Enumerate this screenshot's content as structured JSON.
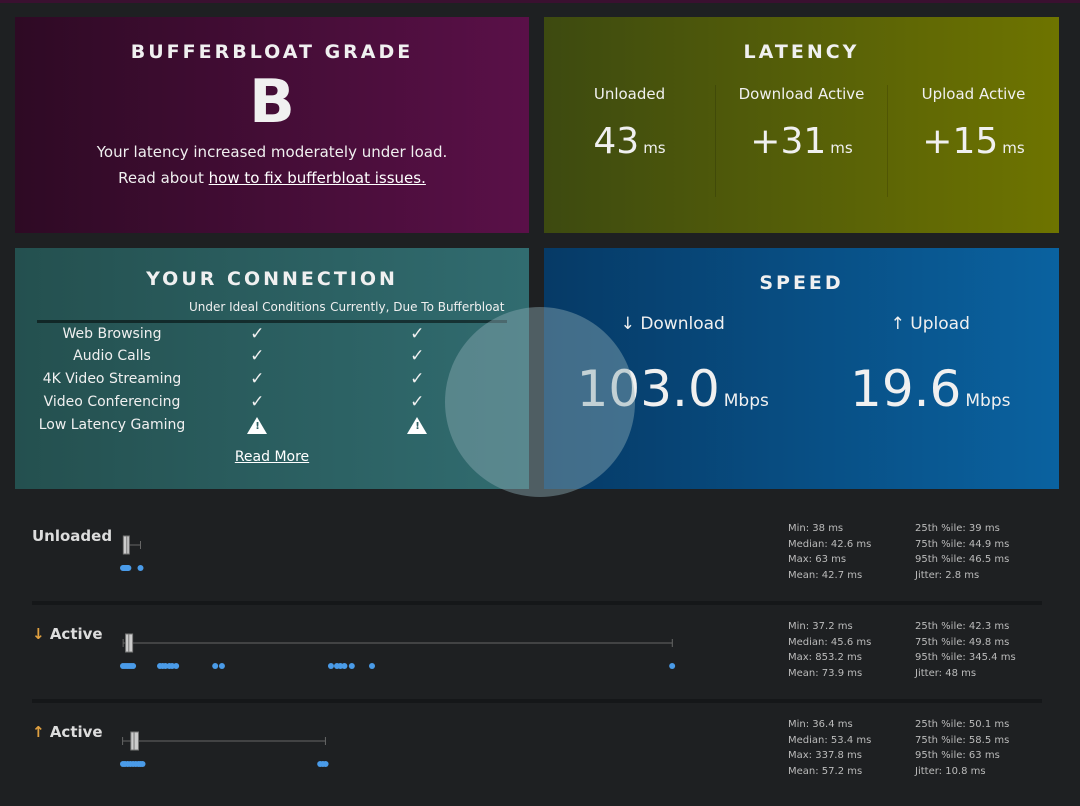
{
  "grade": {
    "title": "BUFFERBLOAT GRADE",
    "letter": "B",
    "message": "Your latency increased moderately under load.",
    "read_prefix": "Read about ",
    "link": "how to fix bufferbloat issues."
  },
  "latency": {
    "title": "LATENCY",
    "items": [
      {
        "label": "Unloaded",
        "value": "43",
        "unit": "ms"
      },
      {
        "label": "Download Active",
        "value": "+31",
        "unit": "ms"
      },
      {
        "label": "Upload Active",
        "value": "+15",
        "unit": "ms"
      }
    ]
  },
  "connection": {
    "title": "YOUR CONNECTION",
    "col1": "Under Ideal Conditions",
    "col2": "Currently, Due To Bufferbloat",
    "rows": [
      {
        "name": "Web Browsing",
        "ideal": "check",
        "current": "check"
      },
      {
        "name": "Audio Calls",
        "ideal": "check",
        "current": "check"
      },
      {
        "name": "4K Video Streaming",
        "ideal": "check",
        "current": "check"
      },
      {
        "name": "Video Conferencing",
        "ideal": "check",
        "current": "check"
      },
      {
        "name": "Low Latency Gaming",
        "ideal": "warning",
        "current": "warning"
      }
    ],
    "read_more": "Read More"
  },
  "speed": {
    "title": "SPEED",
    "download": {
      "label": "↓ Download",
      "value": "103.0",
      "unit": "Mbps"
    },
    "upload": {
      "label": "↑ Upload",
      "value": "19.6",
      "unit": "Mbps"
    }
  },
  "details": [
    {
      "arrow": "",
      "label": "Unloaded",
      "min": "Min: 38 ms",
      "median": "Median: 42.6 ms",
      "max": "Max: 63 ms",
      "mean": "Mean: 42.7 ms",
      "p25": "25th %ile: 39 ms",
      "p75": "75th %ile: 44.9 ms",
      "p95": "95th %ile: 46.5 ms",
      "jitter": "Jitter: 2.8 ms",
      "box": {
        "min": 38,
        "q1": 39,
        "median": 42.6,
        "q3": 44.9,
        "max": 63
      },
      "samples": [
        37,
        38,
        39,
        40,
        41,
        42,
        43,
        44,
        45,
        63
      ]
    },
    {
      "arrow": "↓",
      "label": "Active",
      "min": "Min: 37.2 ms",
      "median": "Median: 45.6 ms",
      "max": "Max: 853.2 ms",
      "mean": "Mean: 73.9 ms",
      "p25": "25th %ile: 42.3 ms",
      "p75": "75th %ile: 49.8 ms",
      "p95": "95th %ile: 345.4 ms",
      "jitter": "Jitter: 48 ms",
      "box": {
        "min": 37.2,
        "q1": 42.3,
        "median": 45.6,
        "q3": 49.8,
        "max": 853.2
      },
      "samples": [
        37,
        40,
        43,
        46,
        49,
        52,
        92,
        96,
        100,
        106,
        110,
        116,
        174,
        184,
        346,
        355,
        360,
        366,
        377,
        407,
        853
      ]
    },
    {
      "arrow": "↑",
      "label": "Active",
      "min": "Min: 36.4 ms",
      "median": "Median: 53.4 ms",
      "max": "Max: 337.8 ms",
      "mean": "Mean: 57.2 ms",
      "p25": "25th %ile: 50.1 ms",
      "p75": "75th %ile: 58.5 ms",
      "p95": "95th %ile: 63 ms",
      "jitter": "Jitter: 10.8 ms",
      "box": {
        "min": 36.4,
        "q1": 50.1,
        "median": 53.4,
        "q3": 58.5,
        "max": 337.8
      },
      "samples": [
        37,
        40,
        44,
        48,
        52,
        56,
        60,
        63,
        66,
        330,
        334,
        338
      ]
    }
  ],
  "colors": {
    "grade": "#5a1048",
    "latency": "#6e7400",
    "connection": "#316c70",
    "speed": "#0a62a0",
    "dots": "#4a9be8"
  }
}
